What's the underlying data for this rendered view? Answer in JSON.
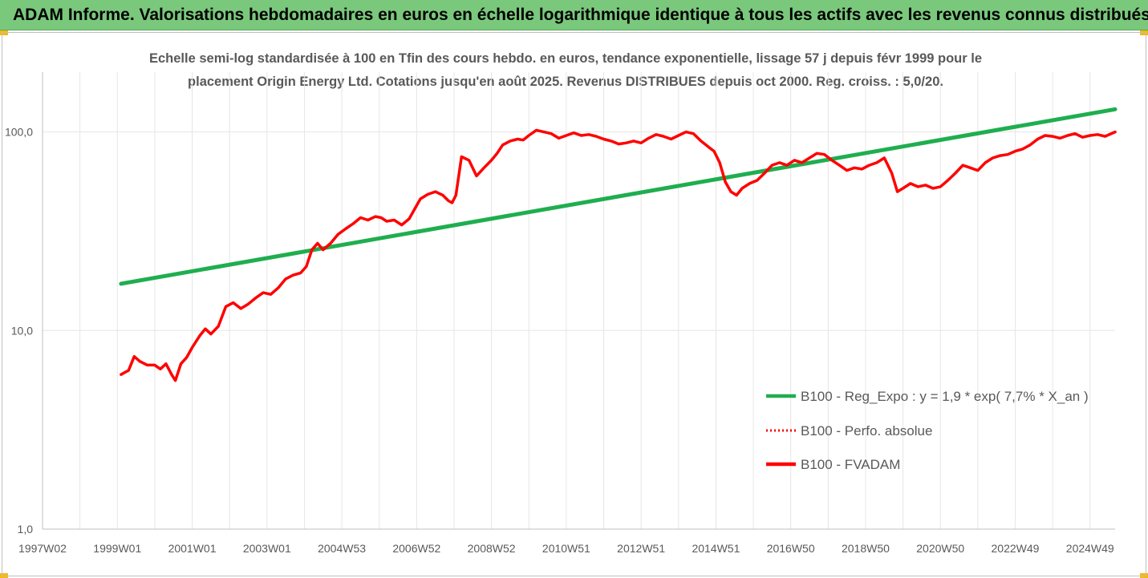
{
  "banner": {
    "title": "ADAM Informe. Valorisations hebdomadaires en euros en échelle logarithmique identique à tous les actifs avec les revenus connus distribués"
  },
  "colors": {
    "banner_bg": "#7ac87c",
    "corner_accent": "#f6b80c",
    "reg_expo": "#1fae4f",
    "fvadam": "#ff0000",
    "perfo_absolue": "#ff0000",
    "grid": "#e6e6e6",
    "title_text": "#595959"
  },
  "chart_data": {
    "type": "line",
    "title_line1": "Echelle semi-log standardisée à 100 en Tfin des cours hebdo. en euros, tendance exponentielle, lissage 57 j depuis févr 1999 pour le",
    "title_line2": "placement Origin Energy Ltd. Cotations jusqu'en août 2025. Revenus DISTRIBUES depuis oct 2000. Reg. croiss. : 5,0/20.",
    "xlabel": "",
    "ylabel": "",
    "y_scale": "log",
    "ylim": [
      1,
      200
    ],
    "y_ticks": [
      {
        "value": 1,
        "label": "1,0"
      },
      {
        "value": 10,
        "label": "10,0"
      },
      {
        "value": 100,
        "label": "100,0"
      }
    ],
    "xlim": [
      1997.0,
      2025.67
    ],
    "x_ticks": [
      {
        "value": 1997.0,
        "label": "1997W02"
      },
      {
        "value": 1999.0,
        "label": "1999W01"
      },
      {
        "value": 2001.0,
        "label": "2001W01"
      },
      {
        "value": 2003.0,
        "label": "2003W01"
      },
      {
        "value": 2005.0,
        "label": "2004W53"
      },
      {
        "value": 2007.0,
        "label": "2006W52"
      },
      {
        "value": 2009.0,
        "label": "2008W52"
      },
      {
        "value": 2011.0,
        "label": "2010W51"
      },
      {
        "value": 2013.0,
        "label": "2012W51"
      },
      {
        "value": 2015.0,
        "label": "2014W51"
      },
      {
        "value": 2017.0,
        "label": "2016W50"
      },
      {
        "value": 2019.0,
        "label": "2018W50"
      },
      {
        "value": 2021.0,
        "label": "2020W50"
      },
      {
        "value": 2023.0,
        "label": "2022W49"
      },
      {
        "value": 2025.0,
        "label": "2024W49"
      }
    ],
    "grid": true,
    "legend_position": "right",
    "series": [
      {
        "name": "B100 - Reg_Expo : y = 1,9 * exp( 7,7% *  X_an )",
        "style": "solid-thick",
        "x": [
          1999.1,
          2025.67
        ],
        "y": [
          17.2,
          130.0
        ]
      },
      {
        "name": "B100 - Perfo. absolue",
        "style": "dotted",
        "x": [],
        "y": []
      },
      {
        "name": "B100 - FVADAM",
        "style": "solid",
        "x": [
          1999.1,
          1999.3,
          1999.45,
          1999.6,
          1999.8,
          2000.0,
          2000.15,
          2000.3,
          2000.45,
          2000.55,
          2000.7,
          2000.85,
          2001.0,
          2001.2,
          2001.35,
          2001.5,
          2001.7,
          2001.9,
          2002.1,
          2002.3,
          2002.5,
          2002.7,
          2002.9,
          2003.1,
          2003.3,
          2003.5,
          2003.7,
          2003.9,
          2004.05,
          2004.2,
          2004.35,
          2004.5,
          2004.7,
          2004.9,
          2005.1,
          2005.3,
          2005.5,
          2005.7,
          2005.9,
          2006.05,
          2006.2,
          2006.4,
          2006.6,
          2006.8,
          2006.95,
          2007.1,
          2007.3,
          2007.5,
          2007.7,
          2007.85,
          2007.95,
          2008.05,
          2008.2,
          2008.4,
          2008.6,
          2008.8,
          2009.0,
          2009.15,
          2009.3,
          2009.5,
          2009.7,
          2009.85,
          2010.0,
          2010.2,
          2010.4,
          2010.6,
          2010.8,
          2011.0,
          2011.2,
          2011.4,
          2011.6,
          2011.8,
          2012.0,
          2012.2,
          2012.4,
          2012.6,
          2012.8,
          2013.0,
          2013.2,
          2013.4,
          2013.6,
          2013.8,
          2014.0,
          2014.2,
          2014.4,
          2014.6,
          2014.8,
          2014.95,
          2015.1,
          2015.25,
          2015.4,
          2015.55,
          2015.7,
          2015.9,
          2016.1,
          2016.3,
          2016.5,
          2016.7,
          2016.9,
          2017.1,
          2017.3,
          2017.5,
          2017.7,
          2017.9,
          2018.1,
          2018.3,
          2018.5,
          2018.7,
          2018.9,
          2019.1,
          2019.3,
          2019.5,
          2019.7,
          2019.85,
          2020.0,
          2020.2,
          2020.4,
          2020.6,
          2020.8,
          2021.0,
          2021.2,
          2021.4,
          2021.6,
          2021.8,
          2022.0,
          2022.2,
          2022.4,
          2022.6,
          2022.8,
          2023.0,
          2023.2,
          2023.4,
          2023.6,
          2023.8,
          2024.0,
          2024.2,
          2024.4,
          2024.6,
          2024.8,
          2025.0,
          2025.2,
          2025.4,
          2025.67
        ],
        "y": [
          6.0,
          6.3,
          7.4,
          7.0,
          6.7,
          6.7,
          6.4,
          6.8,
          6.0,
          5.6,
          6.8,
          7.3,
          8.2,
          9.4,
          10.2,
          9.6,
          10.5,
          13.2,
          13.8,
          12.9,
          13.6,
          14.6,
          15.5,
          15.2,
          16.4,
          18.2,
          19.0,
          19.5,
          21.0,
          25.5,
          27.5,
          25.5,
          27.5,
          30.5,
          32.5,
          34.5,
          37.0,
          36.0,
          37.5,
          37.0,
          35.5,
          36.0,
          34.0,
          36.5,
          41.0,
          46.0,
          48.5,
          50.0,
          48.0,
          45.0,
          44.0,
          48.0,
          75.0,
          72.0,
          60.0,
          66.0,
          72.0,
          78.0,
          86.0,
          90.0,
          92.0,
          91.0,
          96.0,
          102.0,
          100.0,
          98.0,
          93.0,
          96.0,
          99.0,
          96.0,
          97.0,
          95.0,
          92.0,
          90.0,
          87.0,
          88.0,
          90.0,
          88.0,
          93.0,
          97.0,
          95.0,
          92.0,
          96.0,
          100.0,
          98.0,
          90.0,
          84.0,
          80.0,
          70.0,
          56.0,
          50.0,
          48.0,
          52.0,
          55.0,
          57.0,
          62.0,
          68.0,
          70.0,
          68.0,
          72.0,
          70.0,
          74.0,
          78.0,
          77.0,
          72.0,
          68.0,
          64.0,
          66.0,
          65.0,
          68.0,
          70.0,
          74.0,
          62.0,
          50.0,
          52.0,
          55.0,
          53.0,
          54.0,
          52.0,
          53.0,
          57.0,
          62.0,
          68.0,
          66.0,
          64.0,
          70.0,
          74.0,
          76.0,
          77.0,
          80.0,
          82.0,
          86.0,
          92.0,
          96.0,
          95.0,
          93.0,
          96.0,
          98.0,
          94.0,
          96.0,
          97.0,
          95.0,
          100.0
        ]
      }
    ]
  }
}
